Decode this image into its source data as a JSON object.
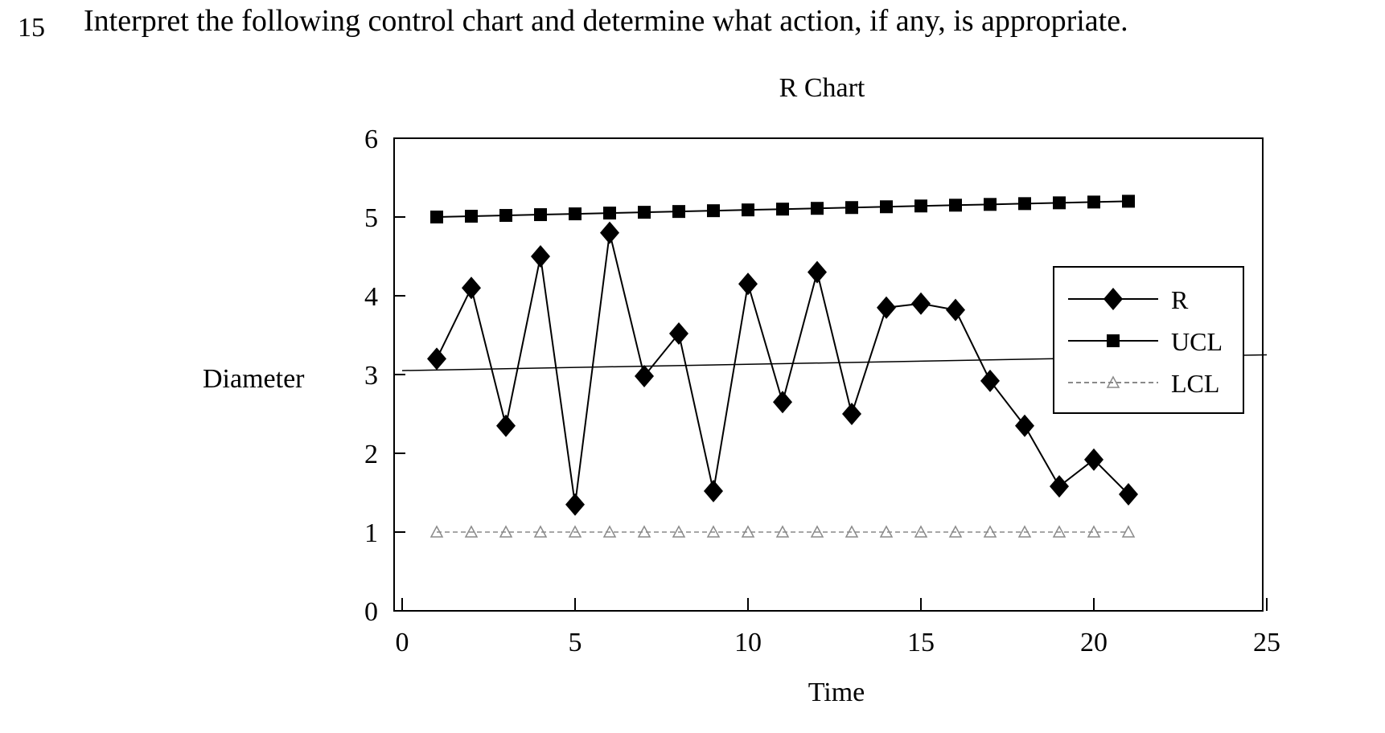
{
  "question": {
    "number": "15",
    "text": "Interpret the following control chart and determine what action, if any, is appropriate."
  },
  "chart_data": {
    "type": "line",
    "title": "R Chart",
    "xlabel": "Time",
    "ylabel": "Diameter",
    "xlim": [
      0,
      25
    ],
    "ylim": [
      0,
      6
    ],
    "xticks": [
      "0",
      "5",
      "10",
      "15",
      "20",
      "25"
    ],
    "yticks": [
      "0",
      "1",
      "2",
      "3",
      "4",
      "5",
      "6"
    ],
    "x": [
      1,
      2,
      3,
      4,
      5,
      6,
      7,
      8,
      9,
      10,
      11,
      12,
      13,
      14,
      15,
      16,
      17,
      18,
      19,
      20,
      21
    ],
    "legend_position": "right",
    "grid": false,
    "series": [
      {
        "name": "R",
        "marker": "diamond",
        "color": "#000000",
        "values": [
          3.2,
          4.1,
          2.35,
          4.5,
          1.35,
          4.8,
          2.98,
          3.52,
          1.52,
          4.15,
          2.65,
          4.3,
          2.5,
          3.85,
          3.9,
          3.82,
          2.92,
          2.35,
          1.58,
          1.92,
          1.48
        ]
      },
      {
        "name": "UCL",
        "marker": "square",
        "color": "#000000",
        "values": [
          5.0,
          5.01,
          5.02,
          5.03,
          5.04,
          5.05,
          5.06,
          5.07,
          5.08,
          5.09,
          5.1,
          5.11,
          5.12,
          5.13,
          5.14,
          5.15,
          5.16,
          5.17,
          5.18,
          5.19,
          5.2
        ]
      },
      {
        "name": "LCL",
        "marker": "triangle",
        "color": "#8a8a8a",
        "values": [
          1.0,
          1.0,
          1.0,
          1.0,
          1.0,
          1.0,
          1.0,
          1.0,
          1.0,
          1.0,
          1.0,
          1.0,
          1.0,
          1.0,
          1.0,
          1.0,
          1.0,
          1.0,
          1.0,
          1.0,
          1.0
        ]
      }
    ],
    "center_line": {
      "start": [
        0,
        3.05
      ],
      "end": [
        25,
        3.25
      ]
    }
  }
}
